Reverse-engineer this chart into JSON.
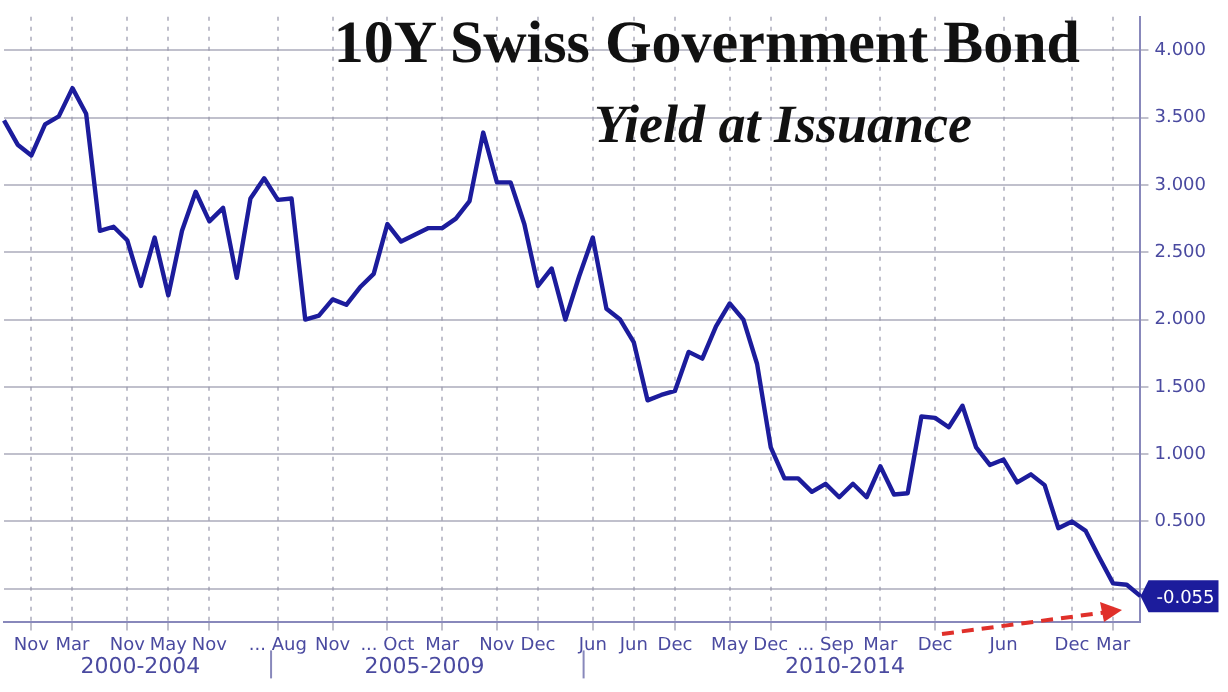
{
  "chart_data": {
    "type": "line",
    "title": "10Y Swiss Government Bond",
    "subtitle": "Yield at Issuance",
    "categories": [
      null,
      null,
      "Nov",
      null,
      null,
      "Mar",
      null,
      null,
      null,
      "Nov",
      null,
      null,
      "May",
      null,
      null,
      "Nov",
      null,
      null,
      null,
      null,
      "... Aug",
      null,
      null,
      null,
      "Nov",
      null,
      null,
      null,
      "... Oct",
      null,
      null,
      null,
      "Mar",
      null,
      null,
      null,
      "Nov",
      null,
      null,
      "Dec",
      null,
      null,
      null,
      "Jun",
      null,
      null,
      "Jun",
      null,
      null,
      "Dec",
      null,
      null,
      null,
      "May",
      null,
      null,
      "Dec",
      null,
      null,
      null,
      "... Sep",
      null,
      null,
      null,
      "Mar",
      null,
      null,
      null,
      "Dec",
      null,
      null,
      null,
      null,
      "Jun",
      null,
      null,
      null,
      null,
      "Dec",
      null,
      null,
      "Mar",
      null,
      null
    ],
    "series": [
      {
        "color": "#1c1c9c",
        "values": [
          3.48,
          3.3,
          3.22,
          3.45,
          3.51,
          3.72,
          3.53,
          2.66,
          2.69,
          2.59,
          2.25,
          2.61,
          2.18,
          2.66,
          2.95,
          2.73,
          2.83,
          2.31,
          2.9,
          3.05,
          2.89,
          2.9,
          2.0,
          2.03,
          2.15,
          2.11,
          2.24,
          2.34,
          2.71,
          2.58,
          2.63,
          2.68,
          2.68,
          2.75,
          2.88,
          3.39,
          3.02,
          3.02,
          2.71,
          2.25,
          2.38,
          2.0,
          2.32,
          2.61,
          2.08,
          2.0,
          1.83,
          1.4,
          1.44,
          1.47,
          1.76,
          1.71,
          1.95,
          2.12,
          2.0,
          1.67,
          1.05,
          0.82,
          0.82,
          0.72,
          0.78,
          0.68,
          0.78,
          0.68,
          0.91,
          0.7,
          0.71,
          1.28,
          1.27,
          1.2,
          1.36,
          1.05,
          0.92,
          0.96,
          0.79,
          0.85,
          0.77,
          0.45,
          0.5,
          0.43,
          0.23,
          0.04,
          0.03,
          -0.055
        ],
        "value_labels": [
          null,
          null,
          null,
          null,
          null,
          null,
          null,
          null,
          null,
          null,
          null,
          null,
          null,
          null,
          null,
          null,
          null,
          null,
          null,
          null,
          null,
          null,
          null,
          null,
          null,
          null,
          null,
          null,
          null,
          null,
          null,
          null,
          null,
          null,
          null,
          null,
          null,
          null,
          null,
          null,
          null,
          null,
          null,
          null,
          null,
          null,
          null,
          null,
          null,
          null,
          null,
          null,
          null,
          null,
          null,
          null,
          null,
          null,
          null,
          null,
          null,
          null,
          null,
          null,
          null,
          null,
          null,
          null,
          null,
          null,
          null,
          null,
          null,
          null,
          null,
          null,
          null,
          null,
          null,
          null,
          null,
          null,
          null,
          "-0.055"
        ]
      }
    ],
    "ylim": [
      -0.25,
      4.25
    ],
    "yticks": [
      {
        "value": 0,
        "label": null
      },
      {
        "value": 0.5,
        "label": "0.500"
      },
      {
        "value": 1,
        "label": "1.000"
      },
      {
        "value": 1.5,
        "label": "1.500"
      },
      {
        "value": 2,
        "label": "2.000"
      },
      {
        "value": 2.5,
        "label": "2.500"
      },
      {
        "value": 3,
        "label": "3.000"
      },
      {
        "value": 3.5,
        "label": "3.500"
      },
      {
        "value": 4,
        "label": "4.000"
      }
    ],
    "annotations": [
      "2000-2004",
      "2005-2009",
      "2010-2014"
    ],
    "grid": true,
    "legend": false,
    "marker": "none",
    "line_style": "solid"
  }
}
